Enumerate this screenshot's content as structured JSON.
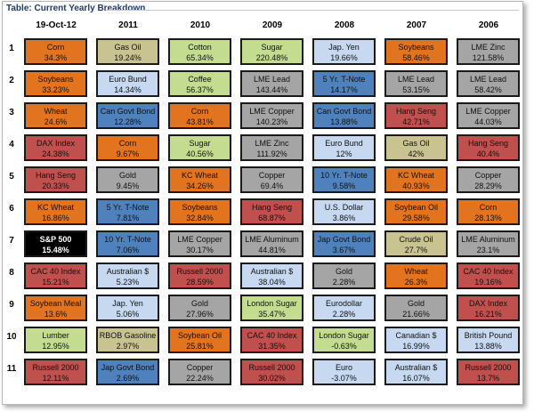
{
  "title": "Table: Current Yearly Breakdown",
  "columns": [
    "19-Oct-12",
    "2011",
    "2010",
    "2009",
    "2008",
    "2007",
    "2006"
  ],
  "palette": {
    "orange": "#e3741f",
    "tan": "#c9c392",
    "green": "#c3dc8f",
    "lightblue": "#c6d9f1",
    "gray": "#a5a5a5",
    "blue": "#4f81bd",
    "red": "#c0504d",
    "black": "#000000"
  },
  "rows": [
    {
      "rank": "1",
      "cells": [
        {
          "name": "Corn",
          "pct": "34.3%",
          "color": "orange"
        },
        {
          "name": "Gas Oil",
          "pct": "19.24%",
          "color": "tan"
        },
        {
          "name": "Cotton",
          "pct": "65.34%",
          "color": "green"
        },
        {
          "name": "Sugar",
          "pct": "220.48%",
          "color": "green"
        },
        {
          "name": "Jap. Yen",
          "pct": "19.66%",
          "color": "lightblue"
        },
        {
          "name": "Soybeans",
          "pct": "58.46%",
          "color": "orange"
        },
        {
          "name": "LME Zinc",
          "pct": "121.58%",
          "color": "gray"
        }
      ]
    },
    {
      "rank": "2",
      "cells": [
        {
          "name": "Soybeans",
          "pct": "33.23%",
          "color": "orange"
        },
        {
          "name": "Euro Bund",
          "pct": "14.34%",
          "color": "lightblue"
        },
        {
          "name": "Coffee",
          "pct": "56.37%",
          "color": "green"
        },
        {
          "name": "LME Lead",
          "pct": "143.44%",
          "color": "gray"
        },
        {
          "name": "5 Yr. T-Note",
          "pct": "14.17%",
          "color": "blue"
        },
        {
          "name": "LME Lead",
          "pct": "53.15%",
          "color": "gray"
        },
        {
          "name": "LME Lead",
          "pct": "58.42%",
          "color": "gray"
        }
      ]
    },
    {
      "rank": "3",
      "cells": [
        {
          "name": "Wheat",
          "pct": "24.6%",
          "color": "orange"
        },
        {
          "name": "Can Govt Bond",
          "pct": "12.28%",
          "color": "blue"
        },
        {
          "name": "Corn",
          "pct": "43.81%",
          "color": "orange"
        },
        {
          "name": "LME Copper",
          "pct": "140.23%",
          "color": "gray"
        },
        {
          "name": "Can Govt Bond",
          "pct": "13.88%",
          "color": "blue"
        },
        {
          "name": "Hang Seng",
          "pct": "42.71%",
          "color": "red"
        },
        {
          "name": "LME Copper",
          "pct": "44.03%",
          "color": "gray"
        }
      ]
    },
    {
      "rank": "4",
      "cells": [
        {
          "name": "DAX Index",
          "pct": "24.38%",
          "color": "red"
        },
        {
          "name": "Corn",
          "pct": "9.67%",
          "color": "orange"
        },
        {
          "name": "Sugar",
          "pct": "40.56%",
          "color": "green"
        },
        {
          "name": "LME Zinc",
          "pct": "111.92%",
          "color": "gray"
        },
        {
          "name": "Euro Bund",
          "pct": "12%",
          "color": "lightblue"
        },
        {
          "name": "Gas Oil",
          "pct": "42%",
          "color": "tan"
        },
        {
          "name": "Hang Seng",
          "pct": "40.4%",
          "color": "red"
        }
      ]
    },
    {
      "rank": "5",
      "cells": [
        {
          "name": "Hang Seng",
          "pct": "20.33%",
          "color": "red"
        },
        {
          "name": "Gold",
          "pct": "9.45%",
          "color": "gray"
        },
        {
          "name": "KC Wheat",
          "pct": "34.26%",
          "color": "orange"
        },
        {
          "name": "Copper",
          "pct": "69.4%",
          "color": "gray"
        },
        {
          "name": "10 Yr. T-Note",
          "pct": "9.58%",
          "color": "blue"
        },
        {
          "name": "KC Wheat",
          "pct": "40.93%",
          "color": "orange"
        },
        {
          "name": "Copper",
          "pct": "28.29%",
          "color": "gray"
        }
      ]
    },
    {
      "rank": "6",
      "cells": [
        {
          "name": "KC Wheat",
          "pct": "16.86%",
          "color": "orange"
        },
        {
          "name": "5 Yr. T-Note",
          "pct": "7.81%",
          "color": "blue"
        },
        {
          "name": "Soybeans",
          "pct": "32.84%",
          "color": "orange"
        },
        {
          "name": "Hang Seng",
          "pct": "68.87%",
          "color": "red"
        },
        {
          "name": "U.S. Dollar",
          "pct": "3.86%",
          "color": "lightblue"
        },
        {
          "name": "Soybean Oil",
          "pct": "29.58%",
          "color": "orange"
        },
        {
          "name": "Corn",
          "pct": "28.13%",
          "color": "orange"
        }
      ]
    },
    {
      "rank": "7",
      "cells": [
        {
          "name": "S&P 500",
          "pct": "15.48%",
          "color": "black"
        },
        {
          "name": "10 Yr. T-Note",
          "pct": "7.06%",
          "color": "blue"
        },
        {
          "name": "LME Copper",
          "pct": "30.17%",
          "color": "gray"
        },
        {
          "name": "LME Aluminum",
          "pct": "44.81%",
          "color": "gray"
        },
        {
          "name": "Jap Govt Bond",
          "pct": "3.67%",
          "color": "blue"
        },
        {
          "name": "Crude Oil",
          "pct": "27.7%",
          "color": "tan"
        },
        {
          "name": "LME Aluminum",
          "pct": "23.1%",
          "color": "gray"
        }
      ]
    },
    {
      "rank": "8",
      "cells": [
        {
          "name": "CAC 40 Index",
          "pct": "15.21%",
          "color": "red"
        },
        {
          "name": "Australian $",
          "pct": "5.23%",
          "color": "lightblue"
        },
        {
          "name": "Russell 2000",
          "pct": "28.59%",
          "color": "red"
        },
        {
          "name": "Australian $",
          "pct": "38.04%",
          "color": "lightblue"
        },
        {
          "name": "Gold",
          "pct": "2.28%",
          "color": "gray"
        },
        {
          "name": "Wheat",
          "pct": "26.3%",
          "color": "orange"
        },
        {
          "name": "CAC 40 Index",
          "pct": "19.16%",
          "color": "red"
        }
      ]
    },
    {
      "rank": "9",
      "cells": [
        {
          "name": "Soybean Meal",
          "pct": "13.6%",
          "color": "orange"
        },
        {
          "name": "Jap. Yen",
          "pct": "5.06%",
          "color": "lightblue"
        },
        {
          "name": "Gold",
          "pct": "27.96%",
          "color": "gray"
        },
        {
          "name": "London Sugar",
          "pct": "35.47%",
          "color": "green"
        },
        {
          "name": "Eurodollar",
          "pct": "2.28%",
          "color": "lightblue"
        },
        {
          "name": "Gold",
          "pct": "21.66%",
          "color": "gray"
        },
        {
          "name": "DAX Index",
          "pct": "16.21%",
          "color": "red"
        }
      ]
    },
    {
      "rank": "10",
      "cells": [
        {
          "name": "Lumber",
          "pct": "12.95%",
          "color": "green"
        },
        {
          "name": "RBOB Gasoline",
          "pct": "2.97%",
          "color": "tan"
        },
        {
          "name": "Soybean Oil",
          "pct": "25.81%",
          "color": "orange"
        },
        {
          "name": "CAC 40 Index",
          "pct": "31.35%",
          "color": "red"
        },
        {
          "name": "London Sugar",
          "pct": "-0.63%",
          "color": "green"
        },
        {
          "name": "Canadian $",
          "pct": "16.99%",
          "color": "lightblue"
        },
        {
          "name": "British Pound",
          "pct": "13.88%",
          "color": "lightblue"
        }
      ]
    },
    {
      "rank": "11",
      "cells": [
        {
          "name": "Russell 2000",
          "pct": "12.11%",
          "color": "red"
        },
        {
          "name": "Jap Govt Bond",
          "pct": "2.69%",
          "color": "blue"
        },
        {
          "name": "Copper",
          "pct": "22.24%",
          "color": "gray"
        },
        {
          "name": "Russell 2000",
          "pct": "30.02%",
          "color": "red"
        },
        {
          "name": "Euro",
          "pct": "-3.07%",
          "color": "lightblue"
        },
        {
          "name": "Australian $",
          "pct": "16.07%",
          "color": "lightblue"
        },
        {
          "name": "Russell 2000",
          "pct": "13.7%",
          "color": "red"
        }
      ]
    }
  ]
}
